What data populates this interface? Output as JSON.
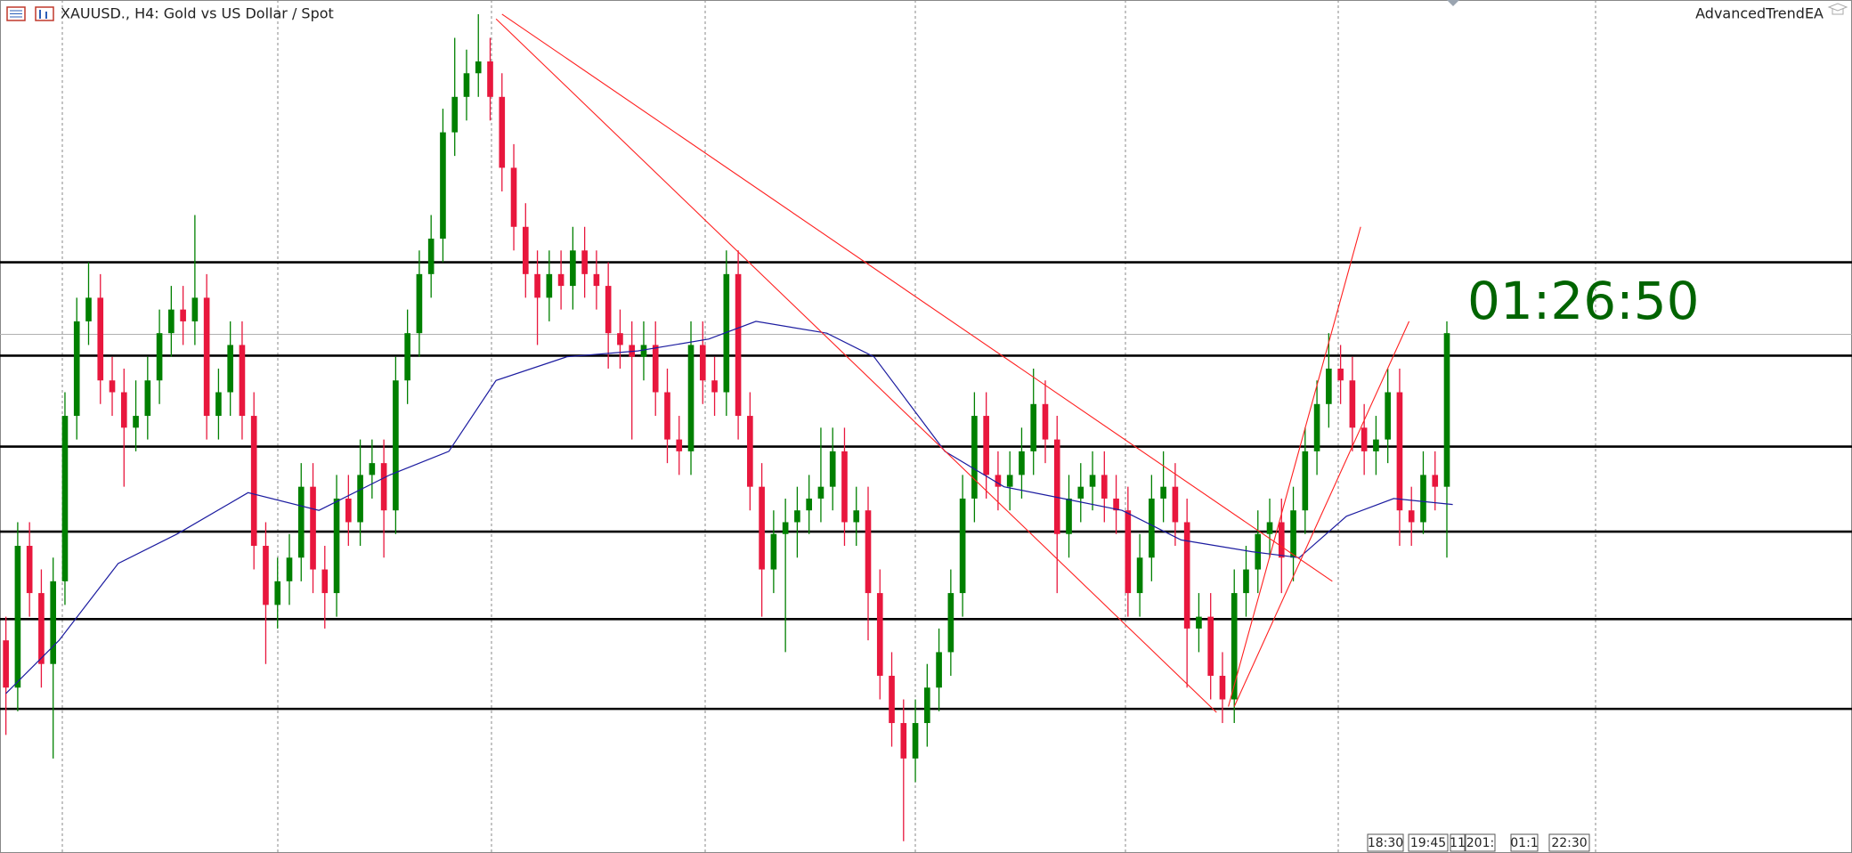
{
  "chart_data": {
    "type": "candlestick",
    "title": "XAUUSD., H4: Gold vs US Dollar / Spot",
    "expert": "AdvancedTrendEA",
    "timer": "01:26:50",
    "time_labels": [
      "18:30",
      "19:45",
      "11",
      "201:",
      "01:1",
      "22:30"
    ],
    "xlim": [
      -0.5,
      156.3
    ],
    "ylim": [
      0,
      72.2
    ],
    "bull_color": "#008000",
    "bear_color": "#e8173d",
    "open": [
      18,
      14,
      26,
      22,
      16,
      23,
      37,
      45,
      47,
      40,
      39,
      36,
      37,
      40,
      44,
      46,
      45,
      47,
      37,
      39,
      43,
      37,
      26,
      21,
      23,
      25,
      31,
      24,
      22,
      30,
      28,
      32,
      33,
      29,
      40,
      44,
      49,
      52,
      61,
      64,
      66,
      67,
      64,
      58,
      53,
      49,
      47,
      49,
      48,
      51,
      49,
      48,
      44,
      43,
      42,
      43,
      39,
      35,
      34,
      43,
      40,
      39,
      49,
      37,
      31,
      24,
      27,
      28,
      29,
      30,
      31,
      34,
      28,
      29,
      22,
      15,
      11,
      8,
      11,
      14,
      17,
      22,
      30,
      37,
      32,
      31,
      32,
      34,
      38,
      35,
      27,
      30,
      31,
      32,
      30,
      29,
      22,
      25,
      30,
      31,
      28,
      19,
      20,
      15,
      13,
      22,
      24,
      27,
      28,
      25,
      29,
      34,
      38,
      41,
      40,
      36,
      34,
      35,
      39,
      29,
      28,
      32,
      31
    ],
    "high": [
      20,
      28,
      28,
      24,
      25,
      39,
      47,
      50,
      49,
      42,
      41,
      40,
      42,
      46,
      48,
      48,
      54,
      49,
      41,
      45,
      45,
      39,
      28,
      25,
      27,
      33,
      33,
      26,
      32,
      32,
      35,
      35,
      35,
      42,
      46,
      51,
      54,
      63,
      69,
      68,
      71,
      69,
      66,
      60,
      55,
      51,
      51,
      51,
      53,
      53,
      51,
      50,
      46,
      45,
      45,
      45,
      41,
      37,
      45,
      45,
      42,
      51,
      51,
      39,
      33,
      29,
      30,
      31,
      32,
      36,
      36,
      36,
      31,
      31,
      24,
      17,
      13,
      13,
      16,
      19,
      24,
      32,
      39,
      39,
      34,
      34,
      36,
      41,
      40,
      37,
      32,
      33,
      34,
      34,
      32,
      31,
      27,
      32,
      34,
      33,
      30,
      22,
      22,
      17,
      24,
      26,
      29,
      30,
      30,
      31,
      36,
      40,
      44,
      43,
      42,
      38,
      37,
      41,
      41,
      31,
      34,
      34,
      45
    ],
    "low": [
      10,
      12,
      20,
      14,
      8,
      21,
      35,
      43,
      38,
      37,
      31,
      34,
      35,
      38,
      42,
      43,
      43,
      35,
      35,
      37,
      35,
      24,
      16,
      19,
      21,
      23,
      22,
      19,
      20,
      26,
      26,
      30,
      25,
      27,
      38,
      42,
      47,
      50,
      59,
      62,
      64,
      62,
      56,
      51,
      47,
      43,
      45,
      46,
      46,
      47,
      46,
      41,
      41,
      35,
      40,
      37,
      33,
      32,
      32,
      38,
      37,
      37,
      35,
      29,
      20,
      22,
      17,
      25,
      27,
      28,
      29,
      26,
      26,
      18,
      13,
      9,
      1,
      6,
      9,
      12,
      15,
      20,
      28,
      30,
      29,
      29,
      30,
      32,
      33,
      22,
      25,
      28,
      29,
      28,
      27,
      20,
      20,
      23,
      28,
      26,
      14,
      17,
      13,
      11,
      11,
      20,
      22,
      25,
      22,
      23,
      27,
      32,
      36,
      38,
      34,
      32,
      32,
      33,
      26,
      26,
      27,
      29,
      25
    ],
    "close": [
      14,
      26,
      22,
      16,
      23,
      37,
      45,
      47,
      40,
      39,
      36,
      37,
      40,
      44,
      46,
      45,
      47,
      37,
      39,
      43,
      37,
      26,
      21,
      23,
      25,
      31,
      24,
      22,
      30,
      28,
      32,
      33,
      29,
      40,
      44,
      49,
      52,
      61,
      64,
      66,
      67,
      64,
      58,
      53,
      49,
      47,
      49,
      48,
      51,
      49,
      48,
      44,
      43,
      42,
      43,
      39,
      35,
      34,
      43,
      40,
      39,
      49,
      37,
      31,
      24,
      27,
      28,
      29,
      30,
      31,
      34,
      28,
      29,
      22,
      15,
      11,
      8,
      11,
      14,
      17,
      22,
      30,
      37,
      32,
      31,
      32,
      34,
      38,
      35,
      27,
      30,
      31,
      32,
      30,
      29,
      22,
      25,
      30,
      31,
      28,
      19,
      20,
      15,
      13,
      22,
      24,
      27,
      28,
      25,
      29,
      34,
      38,
      41,
      40,
      36,
      34,
      35,
      39,
      29,
      28,
      32,
      31,
      44
    ],
    "ma": {
      "color": "#1c1ca0",
      "x": [
        0,
        4.5,
        9.5,
        14.5,
        20.5,
        26.5,
        32.5,
        37.5,
        41.5,
        47.5,
        53.5,
        59.5,
        63.5,
        69.5,
        73.5,
        79.5,
        84.5,
        89.5,
        94.5,
        99.5,
        105.5,
        109.5,
        113.5,
        117.5,
        122.5
      ],
      "values": [
        13.5,
        18,
        24.5,
        27,
        30.5,
        29,
        32,
        34,
        40,
        42,
        42.5,
        43.5,
        45,
        44,
        42,
        34,
        31,
        30,
        29,
        26.5,
        25.5,
        25,
        28.5,
        30,
        29.5
      ]
    },
    "levels": [
      50,
      42.1,
      34.4,
      27.2,
      19.8,
      12.2
    ],
    "level_color": "#000000",
    "price_line": 43.9,
    "price_line_color": "#b0b0b0",
    "trendline_color": "#ff2020",
    "trendlines": [
      {
        "x": [
          42,
          112.3
        ],
        "values": [
          71,
          23
        ]
      },
      {
        "x": [
          41.5,
          102.5
        ],
        "values": [
          70.6,
          11.9
        ]
      },
      {
        "x": [
          103.5,
          114.7
        ],
        "values": [
          12.4,
          53
        ]
      },
      {
        "x": [
          104,
          118.8
        ],
        "values": [
          12.4,
          45
        ]
      }
    ]
  }
}
